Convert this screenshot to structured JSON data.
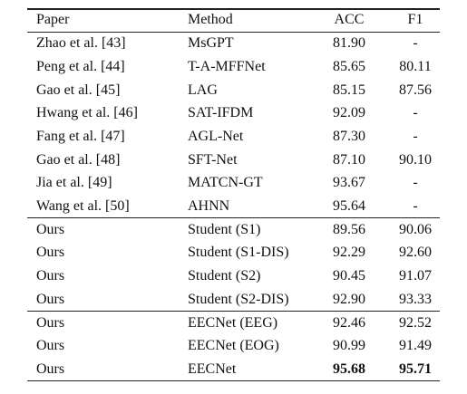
{
  "table": {
    "header": [
      "Paper",
      "Method",
      "ACC",
      "F1"
    ],
    "groups": [
      [
        [
          "Zhao et al. [43]",
          "MsGPT",
          "81.90",
          "-"
        ],
        [
          "Peng et al. [44]",
          "T-A-MFFNet",
          "85.65",
          "80.11"
        ],
        [
          "Gao et al. [45]",
          "LAG",
          "85.15",
          "87.56"
        ],
        [
          "Hwang et al. [46]",
          "SAT-IFDM",
          "92.09",
          "-"
        ],
        [
          "Fang et al. [47]",
          "AGL-Net",
          "87.30",
          "-"
        ],
        [
          "Gao et al. [48]",
          "SFT-Net",
          "87.10",
          "90.10"
        ],
        [
          "Jia et al. [49]",
          "MATCN-GT",
          "93.67",
          "-"
        ],
        [
          "Wang et al. [50]",
          "AHNN",
          "95.64",
          "-"
        ]
      ],
      [
        [
          "Ours",
          "Student (S1)",
          "89.56",
          "90.06"
        ],
        [
          "Ours",
          "Student (S1-DIS)",
          "92.29",
          "92.60"
        ],
        [
          "Ours",
          "Student (S2)",
          "90.45",
          "91.07"
        ],
        [
          "Ours",
          "Student (S2-DIS)",
          "92.90",
          "93.33"
        ]
      ],
      [
        [
          "Ours",
          "EECNet (EEG)",
          "92.46",
          "92.52"
        ],
        [
          "Ours",
          "EECNet (EOG)",
          "90.99",
          "91.49"
        ],
        [
          "Ours",
          "EECNet",
          "95.68",
          "95.71"
        ]
      ]
    ]
  }
}
